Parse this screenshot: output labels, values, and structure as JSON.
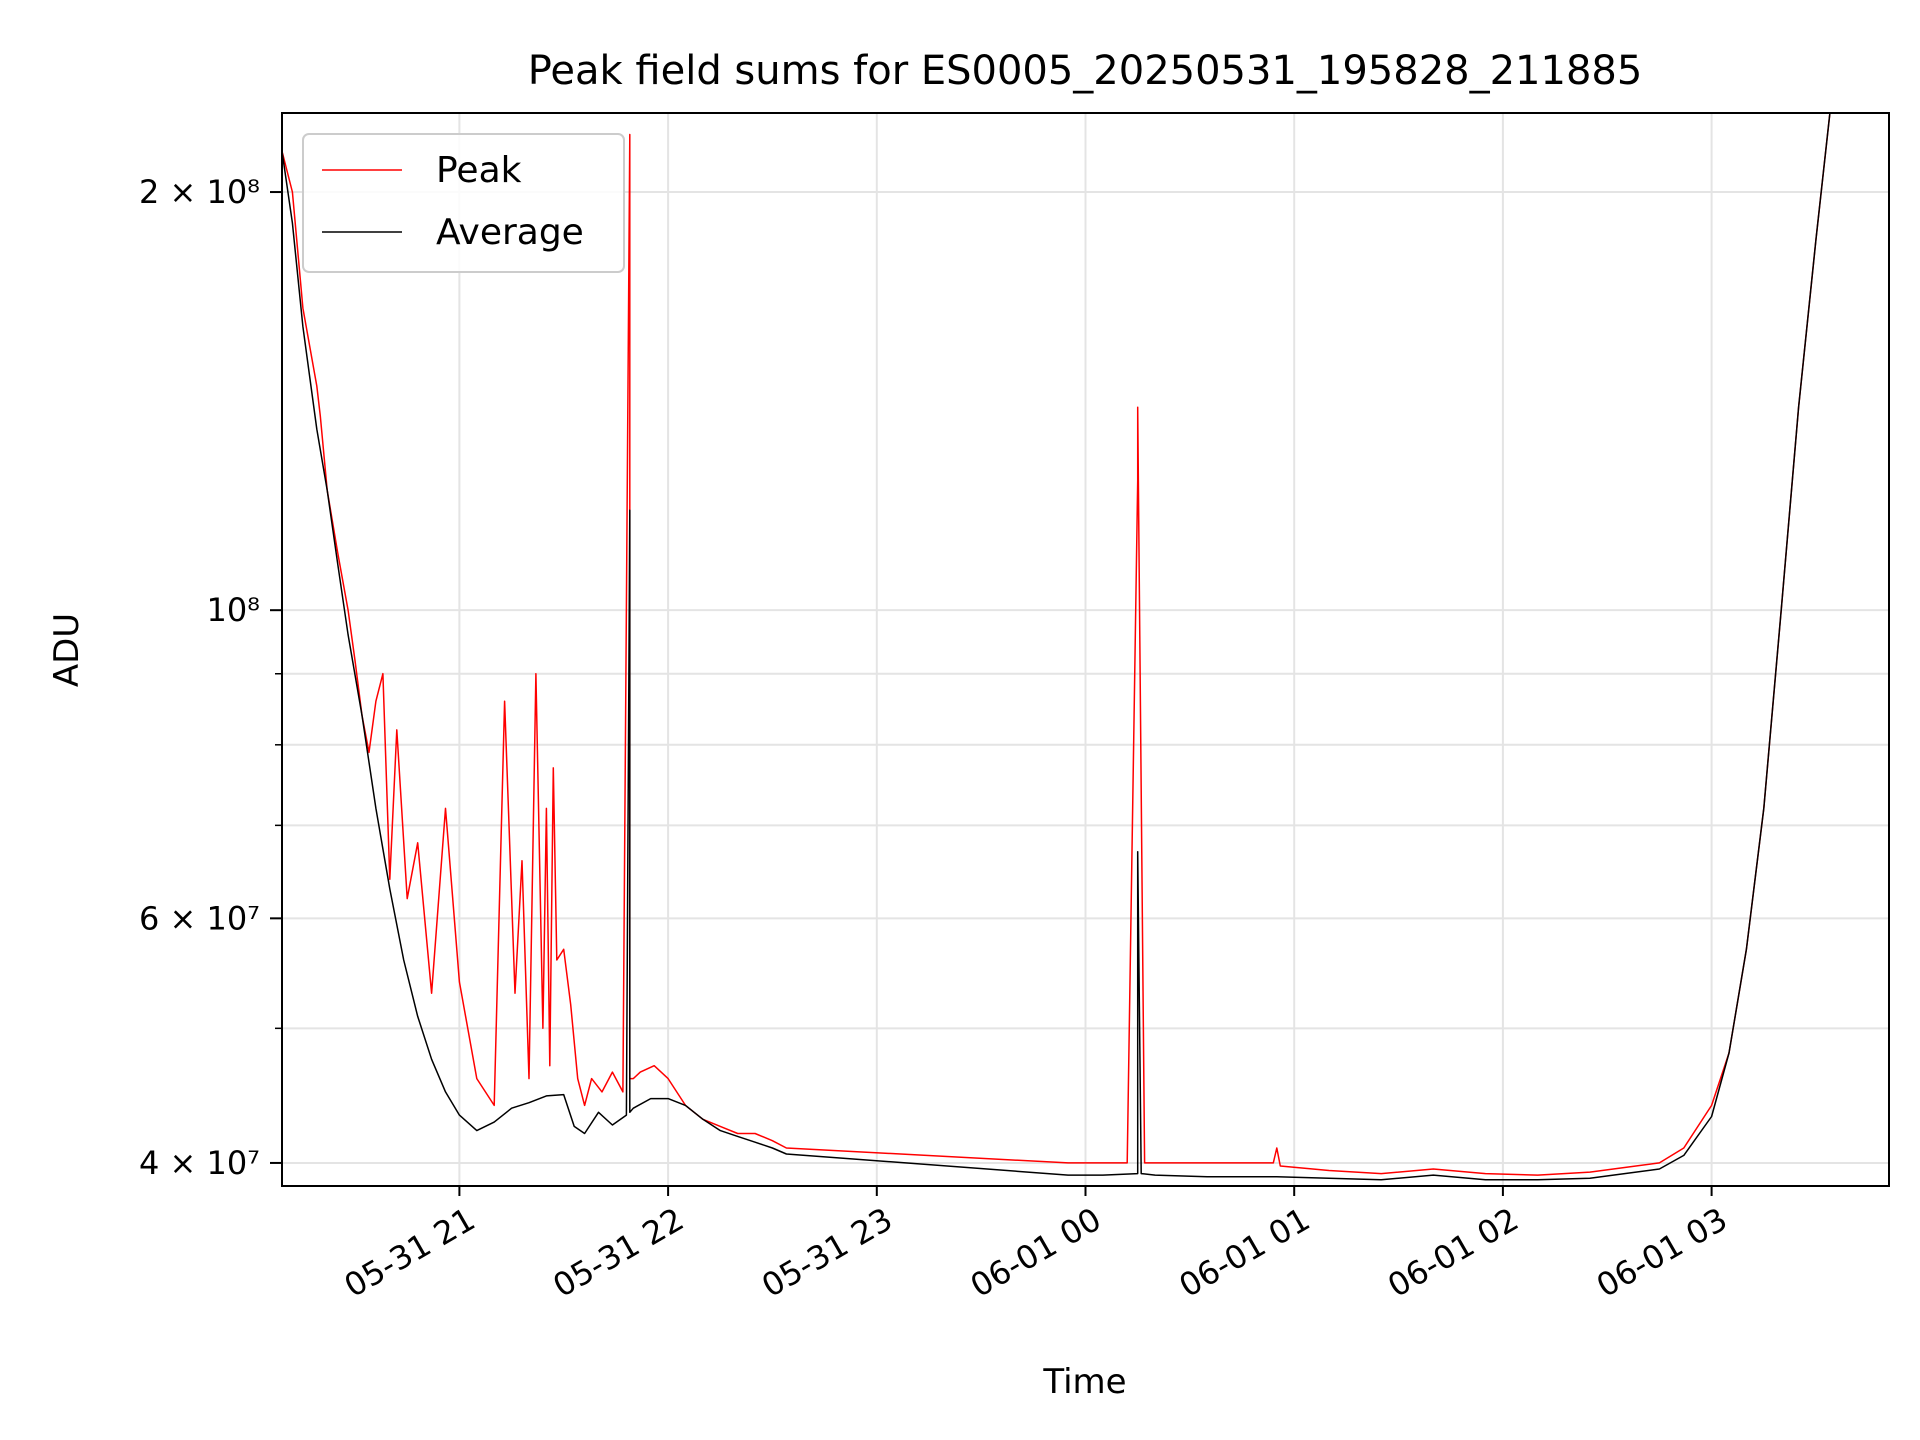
{
  "chart_data": {
    "type": "line",
    "title": "Peak field sums for ES0005_20250531_195828_211885",
    "xlabel": "Time",
    "ylabel": "ADU",
    "yscale": "log",
    "ylim": [
      38500000,
      228000000
    ],
    "xlim": [
      "2025-05-31 20:09",
      "2025-06-01 03:51"
    ],
    "grid": true,
    "legend_position": "top-left",
    "x_ticks": [
      {
        "value": "2025-05-31 21:00",
        "label": "05-31 21"
      },
      {
        "value": "2025-05-31 22:00",
        "label": "05-31 22"
      },
      {
        "value": "2025-05-31 23:00",
        "label": "05-31 23"
      },
      {
        "value": "2025-06-01 00:00",
        "label": "06-01 00"
      },
      {
        "value": "2025-06-01 01:00",
        "label": "06-01 01"
      },
      {
        "value": "2025-06-01 02:00",
        "label": "06-01 02"
      },
      {
        "value": "2025-06-01 03:00",
        "label": "06-01 03"
      }
    ],
    "y_ticks": [
      {
        "value": 40000000,
        "label": "4 × 10⁷"
      },
      {
        "value": 60000000,
        "label": "6 × 10⁷"
      },
      {
        "value": 100000000,
        "label": "10⁸"
      },
      {
        "value": 200000000,
        "label": "2 × 10⁸"
      }
    ],
    "series": [
      {
        "name": "Peak",
        "color": "#ff0000",
        "x": [
          "2025-05-31 20:09",
          "2025-05-31 20:12",
          "2025-05-31 20:15",
          "2025-05-31 20:19",
          "2025-05-31 20:20",
          "2025-05-31 20:22",
          "2025-05-31 20:25",
          "2025-05-31 20:28",
          "2025-05-31 20:30",
          "2025-05-31 20:32",
          "2025-05-31 20:34",
          "2025-05-31 20:36",
          "2025-05-31 20:38",
          "2025-05-31 20:40",
          "2025-05-31 20:42",
          "2025-05-31 20:45",
          "2025-05-31 20:48",
          "2025-05-31 20:52",
          "2025-05-31 20:56",
          "2025-05-31 21:00",
          "2025-05-31 21:05",
          "2025-05-31 21:10",
          "2025-05-31 21:13",
          "2025-05-31 21:16",
          "2025-05-31 21:18",
          "2025-05-31 21:20",
          "2025-05-31 21:22",
          "2025-05-31 21:24",
          "2025-05-31 21:25",
          "2025-05-31 21:26",
          "2025-05-31 21:27",
          "2025-05-31 21:28",
          "2025-05-31 21:30",
          "2025-05-31 21:32",
          "2025-05-31 21:34",
          "2025-05-31 21:36",
          "2025-05-31 21:38",
          "2025-05-31 21:41",
          "2025-05-31 21:44",
          "2025-05-31 21:47",
          "2025-05-31 21:49",
          "2025-05-31 21:49",
          "2025-05-31 21:50",
          "2025-05-31 21:52",
          "2025-05-31 21:56",
          "2025-05-31 22:00",
          "2025-05-31 22:05",
          "2025-05-31 22:10",
          "2025-05-31 22:15",
          "2025-05-31 22:20",
          "2025-05-31 22:25",
          "2025-05-31 22:30",
          "2025-05-31 22:34",
          "2025-05-31 23:55",
          "2025-06-01 00:05",
          "2025-06-01 00:12",
          "2025-06-01 00:15",
          "2025-06-01 00:15",
          "2025-06-01 00:17",
          "2025-06-01 00:20",
          "2025-06-01 00:30",
          "2025-06-01 00:45",
          "2025-06-01 00:54",
          "2025-06-01 00:55",
          "2025-06-01 00:56",
          "2025-06-01 01:10",
          "2025-06-01 01:25",
          "2025-06-01 01:40",
          "2025-06-01 01:55",
          "2025-06-01 02:10",
          "2025-06-01 02:25",
          "2025-06-01 02:35",
          "2025-06-01 02:45",
          "2025-06-01 02:52",
          "2025-06-01 03:00",
          "2025-06-01 03:05",
          "2025-06-01 03:10",
          "2025-06-01 03:15",
          "2025-06-01 03:20",
          "2025-06-01 03:25",
          "2025-06-01 03:30",
          "2025-06-01 03:34"
        ],
        "y": [
          214000000,
          200000000,
          165000000,
          145000000,
          138000000,
          122000000,
          110000000,
          100000000,
          92000000,
          84000000,
          79000000,
          86000000,
          90000000,
          64000000,
          82000000,
          62000000,
          68000000,
          53000000,
          72000000,
          54000000,
          46000000,
          44000000,
          86000000,
          53000000,
          66000000,
          46000000,
          90000000,
          50000000,
          72000000,
          47000000,
          77000000,
          56000000,
          57000000,
          52000000,
          46000000,
          44000000,
          46000000,
          45000000,
          46500000,
          45000000,
          220000000,
          46000000,
          46000000,
          46500000,
          47000000,
          46000000,
          44000000,
          43000000,
          42500000,
          42000000,
          42000000,
          41500000,
          41000000,
          40000000,
          40000000,
          40000000,
          124000000,
          140000000,
          40000000,
          40000000,
          40000000,
          40000000,
          40000000,
          41000000,
          39800000,
          39500000,
          39300000,
          39600000,
          39300000,
          39200000,
          39400000,
          39700000,
          40000000,
          41000000,
          44000000,
          48000000,
          57000000,
          72000000,
          100000000,
          140000000,
          185000000,
          228000000
        ]
      },
      {
        "name": "Average",
        "color": "#000000",
        "x": [
          "2025-05-31 20:09",
          "2025-05-31 20:12",
          "2025-05-31 20:15",
          "2025-05-31 20:19",
          "2025-05-31 20:22",
          "2025-05-31 20:25",
          "2025-05-31 20:28",
          "2025-05-31 20:32",
          "2025-05-31 20:36",
          "2025-05-31 20:40",
          "2025-05-31 20:44",
          "2025-05-31 20:48",
          "2025-05-31 20:52",
          "2025-05-31 20:56",
          "2025-05-31 21:00",
          "2025-05-31 21:05",
          "2025-05-31 21:10",
          "2025-05-31 21:15",
          "2025-05-31 21:20",
          "2025-05-31 21:25",
          "2025-05-31 21:30",
          "2025-05-31 21:33",
          "2025-05-31 21:36",
          "2025-05-31 21:40",
          "2025-05-31 21:44",
          "2025-05-31 21:48",
          "2025-05-31 21:49",
          "2025-05-31 21:49",
          "2025-05-31 21:50",
          "2025-05-31 21:55",
          "2025-05-31 22:00",
          "2025-05-31 22:05",
          "2025-05-31 22:10",
          "2025-05-31 22:15",
          "2025-05-31 22:20",
          "2025-05-31 22:25",
          "2025-05-31 22:30",
          "2025-05-31 22:34",
          "2025-05-31 23:55",
          "2025-06-01 00:05",
          "2025-06-01 00:15",
          "2025-06-01 00:15",
          "2025-06-01 00:16",
          "2025-06-01 00:20",
          "2025-06-01 00:35",
          "2025-06-01 00:55",
          "2025-06-01 01:10",
          "2025-06-01 01:25",
          "2025-06-01 01:40",
          "2025-06-01 01:55",
          "2025-06-01 02:10",
          "2025-06-01 02:25",
          "2025-06-01 02:35",
          "2025-06-01 02:45",
          "2025-06-01 02:52",
          "2025-06-01 03:00",
          "2025-06-01 03:05",
          "2025-06-01 03:10",
          "2025-06-01 03:15",
          "2025-06-01 03:20",
          "2025-06-01 03:25",
          "2025-06-01 03:30",
          "2025-06-01 03:34"
        ],
        "y": [
          214000000,
          190000000,
          160000000,
          135000000,
          122000000,
          108000000,
          96000000,
          84000000,
          72000000,
          63000000,
          56000000,
          51000000,
          47500000,
          45000000,
          43300000,
          42200000,
          42800000,
          43800000,
          44200000,
          44700000,
          44800000,
          42500000,
          42000000,
          43500000,
          42600000,
          43300000,
          118000000,
          43500000,
          43800000,
          44500000,
          44500000,
          44000000,
          43000000,
          42200000,
          41800000,
          41400000,
          41000000,
          40600000,
          39200000,
          39200000,
          39300000,
          67000000,
          39300000,
          39200000,
          39100000,
          39100000,
          39000000,
          38900000,
          39200000,
          38900000,
          38900000,
          39000000,
          39300000,
          39600000,
          40500000,
          43200000,
          48000000,
          57000000,
          72000000,
          100000000,
          140000000,
          185000000,
          228000000
        ]
      }
    ]
  }
}
